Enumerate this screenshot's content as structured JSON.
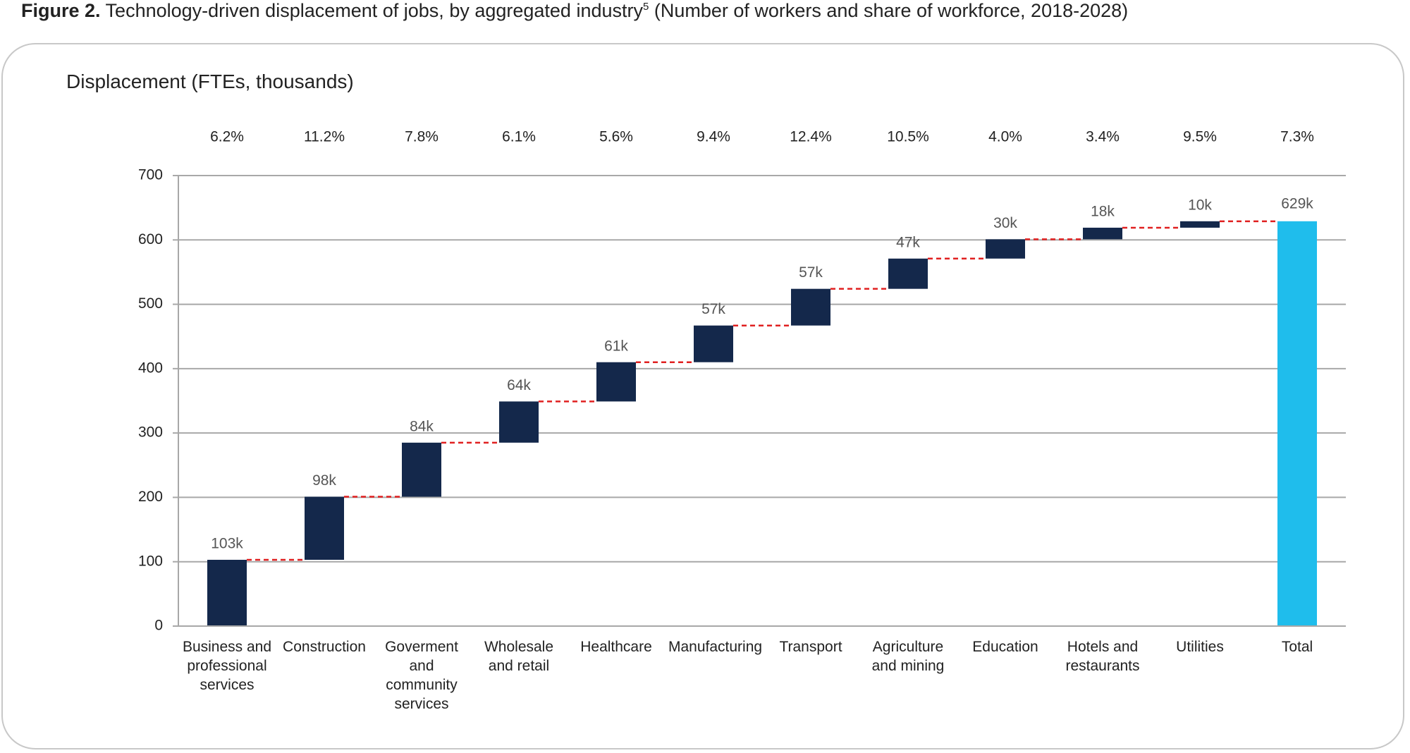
{
  "chart_data": {
    "type": "waterfall",
    "figure_label": "Figure 2.",
    "title": "Technology-driven displacement of jobs, by aggregated industry",
    "title_footnote": "5",
    "subtitle": "(Number of workers and share of workforce, 2018-2028)",
    "y_label": "Displacement (FTEs, thousands)",
    "categories": [
      "Business and professional services",
      "Construction",
      "Goverment and community services",
      "Wholesale and retail",
      "Healthcare",
      "Manufacturing",
      "Transport",
      "Agriculture and mining",
      "Education",
      "Hotels and restaurants",
      "Utilities"
    ],
    "values": [
      103,
      98,
      84,
      64,
      61,
      57,
      57,
      47,
      30,
      18,
      10
    ],
    "value_labels": [
      "103k",
      "98k",
      "84k",
      "64k",
      "61k",
      "57k",
      "57k",
      "47k",
      "30k",
      "18k",
      "10k"
    ],
    "shares": [
      6.2,
      11.2,
      7.8,
      6.1,
      5.6,
      9.4,
      12.4,
      10.5,
      4.0,
      3.4,
      9.5
    ],
    "share_labels": [
      "6.2%",
      "11.2%",
      "7.8%",
      "6.1%",
      "5.6%",
      "9.4%",
      "12.4%",
      "10.5%",
      "4.0%",
      "3.4%",
      "9.5%"
    ],
    "color": "#14284b",
    "total_label": "Total",
    "total": 629,
    "total_value_label": "629k",
    "total_share": 7.3,
    "total_share_label": "7.3%",
    "total_color": "#1fbdec",
    "connector_color": "#e02020",
    "ylim": [
      0,
      700
    ],
    "yticks": [
      0,
      100,
      200,
      300,
      400,
      500,
      600,
      700
    ],
    "grid": true
  }
}
